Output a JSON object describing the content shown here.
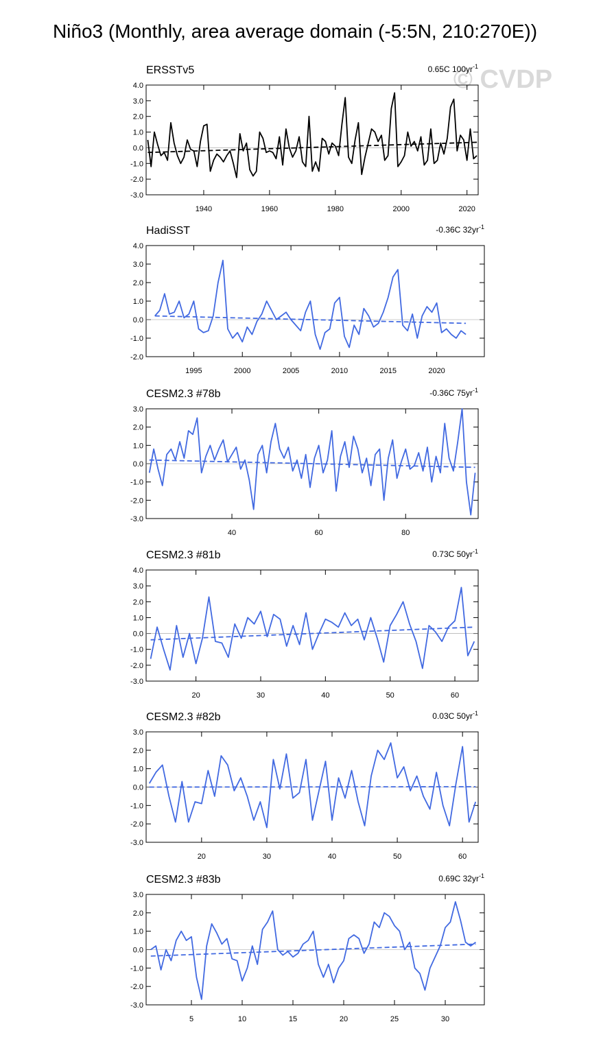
{
  "title": "Niño3 (Monthly, area average domain (-5:5N, 210:270E))",
  "watermark": "© CVDP",
  "chart_data": [
    {
      "type": "line",
      "title": "ERSSTv5",
      "trend_label": "0.65C 100yr",
      "trend_exponent": "-1",
      "color": "#000000",
      "zero_line": 0,
      "xlim": [
        1922.5,
        2023.4
      ],
      "xticks": [
        1940,
        1960,
        1980,
        2000,
        2020
      ],
      "ylim": [
        -3,
        4
      ],
      "yticks": [
        {
          "value": 4,
          "label": "4.0"
        },
        {
          "value": 3,
          "label": "3.0"
        },
        {
          "value": 2,
          "label": "2.0"
        },
        {
          "value": 1,
          "label": "1.0"
        },
        {
          "value": 0,
          "label": "0.0"
        },
        {
          "value": -1,
          "label": "-1.0"
        },
        {
          "value": -2,
          "label": "-2.0"
        },
        {
          "value": -3,
          "label": "-3.0"
        }
      ],
      "x": [
        1923,
        1924,
        1925,
        1926,
        1927,
        1928,
        1929,
        1930,
        1931,
        1932,
        1933,
        1934,
        1935,
        1936,
        1937,
        1938,
        1939,
        1940,
        1941,
        1942,
        1943,
        1944,
        1945,
        1946,
        1947,
        1948,
        1949,
        1950,
        1951,
        1952,
        1953,
        1954,
        1955,
        1956,
        1957,
        1958,
        1959,
        1960,
        1961,
        1962,
        1963,
        1964,
        1965,
        1966,
        1967,
        1968,
        1969,
        1970,
        1971,
        1972,
        1973,
        1974,
        1975,
        1976,
        1977,
        1978,
        1979,
        1980,
        1981,
        1982,
        1983,
        1984,
        1985,
        1986,
        1987,
        1988,
        1989,
        1990,
        1991,
        1992,
        1993,
        1994,
        1995,
        1996,
        1997,
        1998,
        1999,
        2000,
        2001,
        2002,
        2003,
        2004,
        2005,
        2006,
        2007,
        2008,
        2009,
        2010,
        2011,
        2012,
        2013,
        2014,
        2015,
        2016,
        2017,
        2018,
        2019,
        2020,
        2021,
        2022,
        2023
      ],
      "values": [
        0.5,
        -1.2,
        1.0,
        0.2,
        -0.5,
        -0.3,
        -0.8,
        1.6,
        0.3,
        -0.5,
        -1.0,
        -0.6,
        0.5,
        -0.1,
        -0.2,
        -1.2,
        0.4,
        1.4,
        1.5,
        -1.5,
        -0.8,
        -0.4,
        -0.6,
        -0.9,
        -0.5,
        -0.2,
        -1.0,
        -1.9,
        0.9,
        -0.2,
        0.3,
        -1.4,
        -1.8,
        -1.5,
        1.0,
        0.6,
        -0.3,
        -0.2,
        -0.3,
        -0.7,
        0.7,
        -1.1,
        1.2,
        0.0,
        -0.6,
        -0.2,
        0.7,
        -0.9,
        -1.2,
        2.0,
        -1.5,
        -0.9,
        -1.5,
        0.6,
        0.4,
        -0.4,
        0.3,
        0.1,
        -0.5,
        1.5,
        3.2,
        -0.6,
        -1.0,
        0.5,
        1.6,
        -1.7,
        -0.6,
        0.3,
        1.2,
        1.0,
        0.4,
        0.8,
        -0.8,
        -0.5,
        2.5,
        3.5,
        -1.2,
        -0.9,
        -0.5,
        1.0,
        0.1,
        0.4,
        -0.2,
        0.7,
        -1.1,
        -0.8,
        1.2,
        -1.0,
        -0.8,
        0.3,
        -0.4,
        0.6,
        2.6,
        3.1,
        -0.2,
        0.8,
        0.5,
        -0.8,
        1.2,
        -0.7,
        -0.5
      ],
      "trend": {
        "x": [
          1923,
          2023
        ],
        "values": [
          -0.3,
          0.35
        ]
      }
    },
    {
      "type": "line",
      "title": "HadiSST",
      "trend_label": "-0.36C 32yr",
      "trend_exponent": "-1",
      "color": "#4169e1",
      "zero_line": 0,
      "xlim": [
        1990.1,
        2024.9
      ],
      "xticks": [
        1995,
        2000,
        2005,
        2010,
        2015,
        2020
      ],
      "ylim": [
        -2,
        4
      ],
      "yticks": [
        {
          "value": 4,
          "label": "4.0"
        },
        {
          "value": 3,
          "label": "3.0"
        },
        {
          "value": 2,
          "label": "2.0"
        },
        {
          "value": 1,
          "label": "1.0"
        },
        {
          "value": 0,
          "label": "0.0"
        },
        {
          "value": -1,
          "label": "-1.0"
        },
        {
          "value": -2,
          "label": "-2.0"
        }
      ],
      "x": [
        1991,
        1991.5,
        1992,
        1992.5,
        1993,
        1993.5,
        1994,
        1994.5,
        1995,
        1995.5,
        1996,
        1996.5,
        1997,
        1997.5,
        1998,
        1998.5,
        1999,
        1999.5,
        2000,
        2000.5,
        2001,
        2001.5,
        2002,
        2002.5,
        2003,
        2003.5,
        2004,
        2004.5,
        2005,
        2005.5,
        2006,
        2006.5,
        2007,
        2007.5,
        2008,
        2008.5,
        2009,
        2009.5,
        2010,
        2010.5,
        2011,
        2011.5,
        2012,
        2012.5,
        2013,
        2013.5,
        2014,
        2014.5,
        2015,
        2015.5,
        2016,
        2016.5,
        2017,
        2017.5,
        2018,
        2018.5,
        2019,
        2019.5,
        2020,
        2020.5,
        2021,
        2021.5,
        2022,
        2022.5,
        2023
      ],
      "values": [
        0.2,
        0.5,
        1.4,
        0.3,
        0.4,
        1.0,
        0.1,
        0.3,
        1.0,
        -0.5,
        -0.7,
        -0.6,
        0.2,
        2.0,
        3.2,
        -0.5,
        -1.0,
        -0.7,
        -1.2,
        -0.4,
        -0.8,
        -0.1,
        0.3,
        1.0,
        0.5,
        0.0,
        0.2,
        0.4,
        0.0,
        -0.3,
        -0.6,
        0.4,
        1.0,
        -0.8,
        -1.6,
        -0.7,
        -0.5,
        0.9,
        1.2,
        -0.9,
        -1.5,
        -0.3,
        -0.8,
        0.6,
        0.2,
        -0.4,
        -0.2,
        0.4,
        1.2,
        2.3,
        2.7,
        -0.3,
        -0.6,
        0.3,
        -1.0,
        0.2,
        0.7,
        0.4,
        0.9,
        -0.7,
        -0.5,
        -0.8,
        -1.0,
        -0.6,
        -0.8
      ],
      "trend": {
        "x": [
          1991,
          2023
        ],
        "values": [
          0.2,
          -0.2
        ]
      }
    },
    {
      "type": "line",
      "title": "CESM2.3 #78b",
      "trend_label": "-0.36C 75yr",
      "trend_exponent": "-1",
      "color": "#4169e1",
      "zero_line": 0,
      "xlim": [
        20.25,
        96.7
      ],
      "xticks": [
        40,
        60,
        80
      ],
      "ylim": [
        -3,
        3
      ],
      "yticks": [
        {
          "value": 3,
          "label": "3.0"
        },
        {
          "value": 2,
          "label": "2.0"
        },
        {
          "value": 1,
          "label": "1.0"
        },
        {
          "value": 0,
          "label": "0.0"
        },
        {
          "value": -1,
          "label": "-1.0"
        },
        {
          "value": -2,
          "label": "-2.0"
        },
        {
          "value": -3,
          "label": "-3.0"
        }
      ],
      "x": [
        21,
        22,
        23,
        24,
        25,
        26,
        27,
        28,
        29,
        30,
        31,
        32,
        33,
        34,
        35,
        36,
        37,
        38,
        39,
        40,
        41,
        42,
        43,
        44,
        45,
        46,
        47,
        48,
        49,
        50,
        51,
        52,
        53,
        54,
        55,
        56,
        57,
        58,
        59,
        60,
        61,
        62,
        63,
        64,
        65,
        66,
        67,
        68,
        69,
        70,
        71,
        72,
        73,
        74,
        75,
        76,
        77,
        78,
        79,
        80,
        81,
        82,
        83,
        84,
        85,
        86,
        87,
        88,
        89,
        90,
        91,
        92,
        93,
        94,
        95,
        96
      ],
      "values": [
        -0.5,
        0.8,
        -0.3,
        -1.2,
        0.5,
        0.8,
        0.2,
        1.2,
        0.3,
        1.8,
        1.6,
        2.5,
        -0.5,
        0.4,
        1.0,
        0.2,
        0.8,
        1.3,
        0.1,
        0.5,
        0.9,
        -0.3,
        0.2,
        -0.9,
        -2.5,
        0.5,
        1.0,
        -0.5,
        1.2,
        2.2,
        0.8,
        0.3,
        0.9,
        -0.4,
        0.2,
        -0.8,
        0.5,
        -1.3,
        0.3,
        1.0,
        -0.5,
        0.2,
        1.8,
        -1.5,
        0.4,
        1.2,
        -0.2,
        1.5,
        0.8,
        -0.5,
        0.3,
        -1.2,
        0.5,
        0.8,
        -2.0,
        0.3,
        1.3,
        -0.8,
        0.1,
        0.8,
        -0.3,
        -0.1,
        0.6,
        -0.4,
        0.9,
        -1.0,
        0.4,
        -0.5,
        2.2,
        0.3,
        -0.4,
        1.2,
        3.0,
        -1.0,
        -2.8,
        -0.5
      ],
      "trend": {
        "x": [
          21,
          96
        ],
        "values": [
          0.2,
          -0.2
        ]
      }
    },
    {
      "type": "line",
      "title": "CESM2.3 #81b",
      "trend_label": "0.73C 50yr",
      "trend_exponent": "-1",
      "color": "#4169e1",
      "zero_line": 0,
      "xlim": [
        12.3,
        63.6
      ],
      "xticks": [
        20,
        30,
        40,
        50,
        60
      ],
      "ylim": [
        -3,
        4
      ],
      "yticks": [
        {
          "value": 4,
          "label": "4.0"
        },
        {
          "value": 3,
          "label": "3.0"
        },
        {
          "value": 2,
          "label": "2.0"
        },
        {
          "value": 1,
          "label": "1.0"
        },
        {
          "value": 0,
          "label": "0.0"
        },
        {
          "value": -1,
          "label": "-1.0"
        },
        {
          "value": -2,
          "label": "-2.0"
        },
        {
          "value": -3,
          "label": "-3.0"
        }
      ],
      "x": [
        13,
        14,
        15,
        16,
        17,
        18,
        19,
        20,
        21,
        22,
        23,
        24,
        25,
        26,
        27,
        28,
        29,
        30,
        31,
        32,
        33,
        34,
        35,
        36,
        37,
        38,
        39,
        40,
        41,
        42,
        43,
        44,
        45,
        46,
        47,
        48,
        49,
        50,
        51,
        52,
        53,
        54,
        55,
        56,
        57,
        58,
        59,
        60,
        61,
        62,
        63
      ],
      "values": [
        -1.6,
        0.4,
        -1.0,
        -2.3,
        0.5,
        -1.5,
        0.0,
        -1.9,
        -0.3,
        2.3,
        -0.5,
        -0.6,
        -1.5,
        0.6,
        -0.3,
        1.0,
        0.6,
        1.4,
        -0.2,
        1.2,
        0.9,
        -0.8,
        0.5,
        -0.7,
        1.3,
        -1.0,
        0.0,
        0.9,
        0.7,
        0.4,
        1.3,
        0.5,
        0.9,
        -0.4,
        1.0,
        -0.3,
        -1.8,
        0.5,
        1.2,
        2.0,
        0.6,
        -0.5,
        -2.2,
        0.5,
        0.1,
        -0.5,
        0.4,
        0.8,
        2.9,
        -1.4,
        -0.5
      ],
      "trend": {
        "x": [
          13,
          63
        ],
        "values": [
          -0.4,
          0.4
        ]
      }
    },
    {
      "type": "line",
      "title": "CESM2.3 #82b",
      "trend_label": "0.03C 50yr",
      "trend_exponent": "-1",
      "color": "#4169e1",
      "zero_line": 0,
      "xlim": [
        11.5,
        62.4
      ],
      "xticks": [
        20,
        30,
        40,
        50,
        60
      ],
      "ylim": [
        -3,
        3
      ],
      "yticks": [
        {
          "value": 3,
          "label": "3.0"
        },
        {
          "value": 2,
          "label": "2.0"
        },
        {
          "value": 1,
          "label": "1.0"
        },
        {
          "value": 0,
          "label": "0.0"
        },
        {
          "value": -1,
          "label": "-1.0"
        },
        {
          "value": -2,
          "label": "-2.0"
        },
        {
          "value": -3,
          "label": "-3.0"
        }
      ],
      "x": [
        12,
        13,
        14,
        15,
        16,
        17,
        18,
        19,
        20,
        21,
        22,
        23,
        24,
        25,
        26,
        27,
        28,
        29,
        30,
        31,
        32,
        33,
        34,
        35,
        36,
        37,
        38,
        39,
        40,
        41,
        42,
        43,
        44,
        45,
        46,
        47,
        48,
        49,
        50,
        51,
        52,
        53,
        54,
        55,
        56,
        57,
        58,
        59,
        60,
        61,
        62
      ],
      "values": [
        0.2,
        0.8,
        1.2,
        -0.5,
        -1.9,
        0.3,
        -1.9,
        -0.8,
        -0.9,
        0.9,
        -0.5,
        1.7,
        1.2,
        -0.2,
        0.5,
        -0.5,
        -1.8,
        -0.8,
        -2.2,
        1.5,
        -0.1,
        1.8,
        -0.6,
        -0.3,
        1.5,
        -1.8,
        -0.2,
        1.4,
        -1.8,
        0.5,
        -0.6,
        0.9,
        -0.8,
        -2.1,
        0.6,
        2.0,
        1.5,
        2.4,
        0.5,
        1.1,
        -0.2,
        0.6,
        -0.5,
        -1.2,
        0.8,
        -1.0,
        -2.1,
        0.2,
        2.2,
        -1.9,
        -0.8
      ],
      "trend": {
        "x": [
          12,
          62
        ],
        "values": [
          0.0,
          0.02
        ]
      }
    },
    {
      "type": "line",
      "title": "CESM2.3 #83b",
      "trend_label": "0.69C 32yr",
      "trend_exponent": "-1",
      "color": "#4169e1",
      "zero_line": 0,
      "xlim": [
        0.54,
        33.85
      ],
      "xticks": [
        5,
        10,
        15,
        20,
        25,
        30
      ],
      "ylim": [
        -3,
        3
      ],
      "yticks": [
        {
          "value": 3,
          "label": "3.0"
        },
        {
          "value": 2,
          "label": "2.0"
        },
        {
          "value": 1,
          "label": "1.0"
        },
        {
          "value": 0,
          "label": "0.0"
        },
        {
          "value": -1,
          "label": "-1.0"
        },
        {
          "value": -2,
          "label": "-2.0"
        },
        {
          "value": -3,
          "label": "-3.0"
        }
      ],
      "x": [
        1,
        1.5,
        2,
        2.5,
        3,
        3.5,
        4,
        4.5,
        5,
        5.5,
        6,
        6.5,
        7,
        7.5,
        8,
        8.5,
        9,
        9.5,
        10,
        10.5,
        11,
        11.5,
        12,
        12.5,
        13,
        13.5,
        14,
        14.5,
        15,
        15.5,
        16,
        16.5,
        17,
        17.5,
        18,
        18.5,
        19,
        19.5,
        20,
        20.5,
        21,
        21.5,
        22,
        22.5,
        23,
        23.5,
        24,
        24.5,
        25,
        25.5,
        26,
        26.5,
        27,
        27.5,
        28,
        28.5,
        29,
        29.5,
        30,
        30.5,
        31,
        31.5,
        32,
        32.5,
        33
      ],
      "values": [
        0.0,
        0.2,
        -1.1,
        0.0,
        -0.6,
        0.5,
        1.0,
        0.5,
        0.7,
        -1.5,
        -2.7,
        0.2,
        1.4,
        0.9,
        0.3,
        0.6,
        -0.5,
        -0.6,
        -1.7,
        -1.0,
        0.2,
        -0.8,
        1.1,
        1.5,
        2.1,
        0.0,
        -0.3,
        -0.1,
        -0.4,
        -0.2,
        0.3,
        0.5,
        1.0,
        -0.8,
        -1.5,
        -0.8,
        -1.8,
        -1.0,
        -0.6,
        0.6,
        0.8,
        0.6,
        -0.2,
        0.3,
        1.5,
        1.2,
        2.0,
        1.8,
        1.3,
        1.0,
        0.0,
        0.4,
        -1.0,
        -1.3,
        -2.2,
        -1.0,
        -0.4,
        0.2,
        1.2,
        1.5,
        2.6,
        1.6,
        0.4,
        0.2,
        0.4
      ],
      "trend": {
        "x": [
          1,
          33
        ],
        "values": [
          -0.35,
          0.3
        ]
      }
    }
  ]
}
